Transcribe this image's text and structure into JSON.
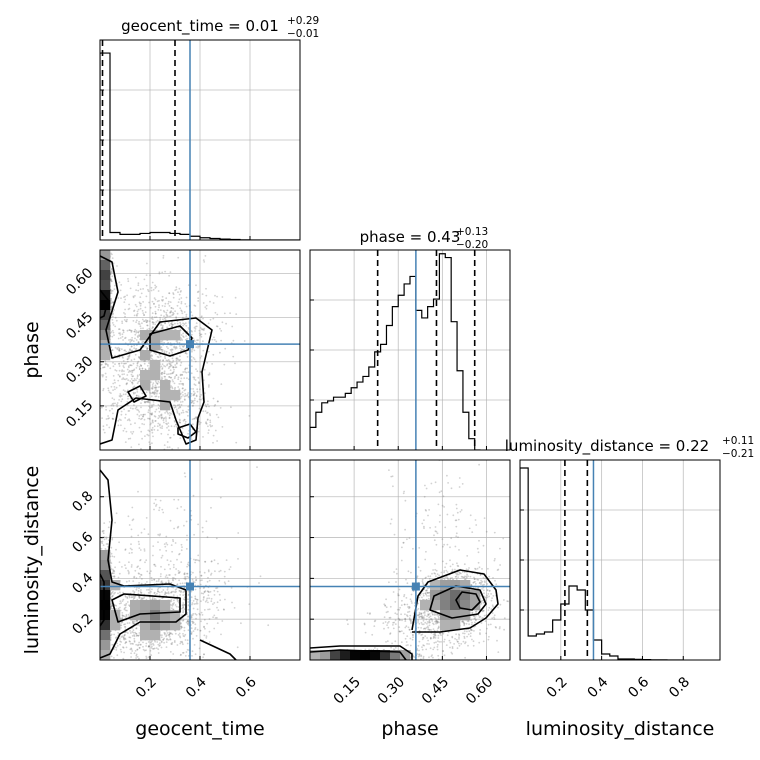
{
  "chart_data": {
    "type": "corner",
    "parameters": [
      "geocent_time",
      "phase",
      "luminosity_distance"
    ],
    "truths": {
      "geocent_time": 0.36,
      "phase": 0.36,
      "luminosity_distance": 0.36
    },
    "truth_color": "#4682b4",
    "axes": {
      "geocent_time": {
        "range": [
          0.0,
          0.8
        ],
        "ticks": [
          "0.2",
          "0.4",
          "0.6"
        ],
        "tick_values": [
          0.2,
          0.4,
          0.6
        ]
      },
      "phase": {
        "range": [
          0.0,
          0.68
        ],
        "ticks": [
          "0.15",
          "0.30",
          "0.45",
          "0.60"
        ],
        "tick_values": [
          0.15,
          0.3,
          0.45,
          0.6
        ]
      },
      "luminosity_distance": {
        "range": [
          0.0,
          0.98
        ],
        "ticks": [
          "0.2",
          "0.4",
          "0.6",
          "0.8"
        ],
        "tick_values": [
          0.2,
          0.4,
          0.6,
          0.8
        ]
      }
    },
    "marginals": [
      {
        "param": "geocent_time",
        "title_main": "geocent_time = 0.01",
        "title_sup": "+0.29",
        "title_sub": "−0.01",
        "quantiles": [
          0.01,
          0.3
        ],
        "bin_width": 0.04,
        "bins_start": 0.0,
        "counts": [
          1.0,
          0.04,
          0.03,
          0.03,
          0.035,
          0.04,
          0.04,
          0.035,
          0.03,
          0.02,
          0.012,
          0.008,
          0.005,
          0.003,
          0.001,
          0.0,
          0.0,
          0.0,
          0.0,
          0.0
        ],
        "ymax": 1.07
      },
      {
        "param": "phase",
        "title_main": "phase = 0.43",
        "title_sup": "+0.13",
        "title_sub": "−0.20",
        "quantiles": [
          0.23,
          0.43,
          0.56
        ],
        "bin_width": 0.02,
        "bins_start": 0.0,
        "counts": [
          0.06,
          0.1,
          0.125,
          0.13,
          0.14,
          0.14,
          0.15,
          0.165,
          0.18,
          0.195,
          0.22,
          0.26,
          0.28,
          0.33,
          0.38,
          0.41,
          0.44,
          0.46,
          0.37,
          0.35,
          0.38,
          0.4,
          0.52,
          0.51,
          0.34,
          0.21,
          0.1,
          0.03,
          0.0
        ],
        "ymax": 0.53
      },
      {
        "param": "luminosity_distance",
        "title_main": "luminosity_distance = 0.22",
        "title_sup": "+0.11",
        "title_sub": "−0.21",
        "quantiles": [
          0.22,
          0.33
        ],
        "bin_width": 0.04,
        "bins_start": 0.0,
        "counts": [
          0.96,
          0.12,
          0.13,
          0.14,
          0.2,
          0.28,
          0.37,
          0.35,
          0.25,
          0.1,
          0.03,
          0.02,
          0.005,
          0.005,
          0.003,
          0.002,
          0.001,
          0.001,
          0.0,
          0.0
        ],
        "ymax": 1.0
      }
    ],
    "pairs": [
      {
        "x": "geocent_time",
        "y": "phase"
      },
      {
        "x": "geocent_time",
        "y": "luminosity_distance"
      },
      {
        "x": "phase",
        "y": "luminosity_distance"
      }
    ],
    "grid": true
  }
}
